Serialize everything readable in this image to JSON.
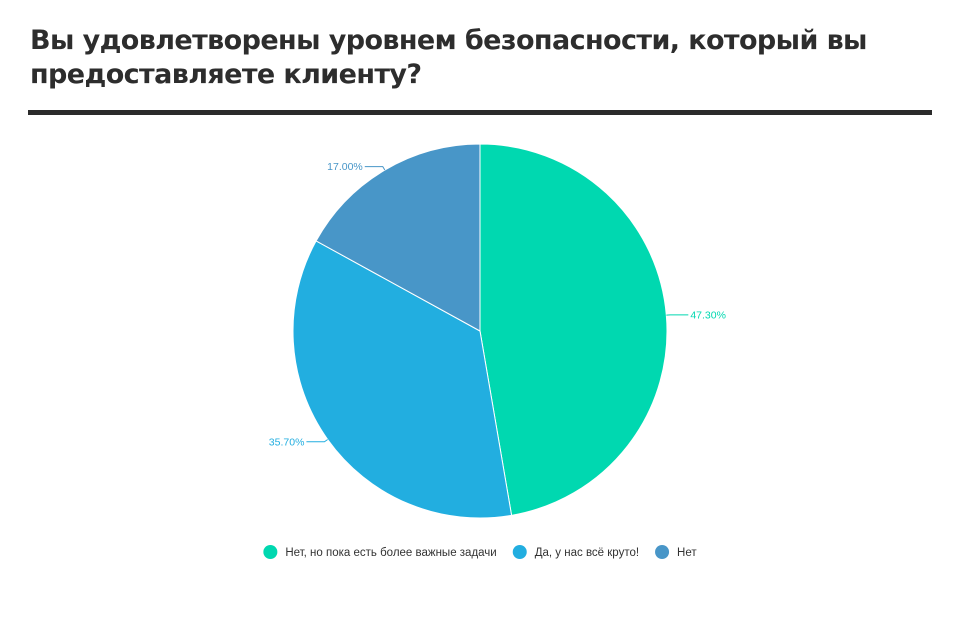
{
  "title": "Вы удовлетворены уровнем безопасности, который вы предоставляете клиенту?",
  "chart_data": {
    "type": "pie",
    "categories": [
      "Нет, но пока есть более важные задачи",
      "Да, у нас всё круто!",
      "Нет"
    ],
    "values": [
      47.3,
      35.7,
      17.0
    ],
    "value_labels": [
      "47.30%",
      "35.70%",
      "17.00%"
    ],
    "colors": [
      "#00d8b0",
      "#22aee0",
      "#4896c8"
    ],
    "start": "top, clockwise",
    "legend_position": "bottom"
  }
}
